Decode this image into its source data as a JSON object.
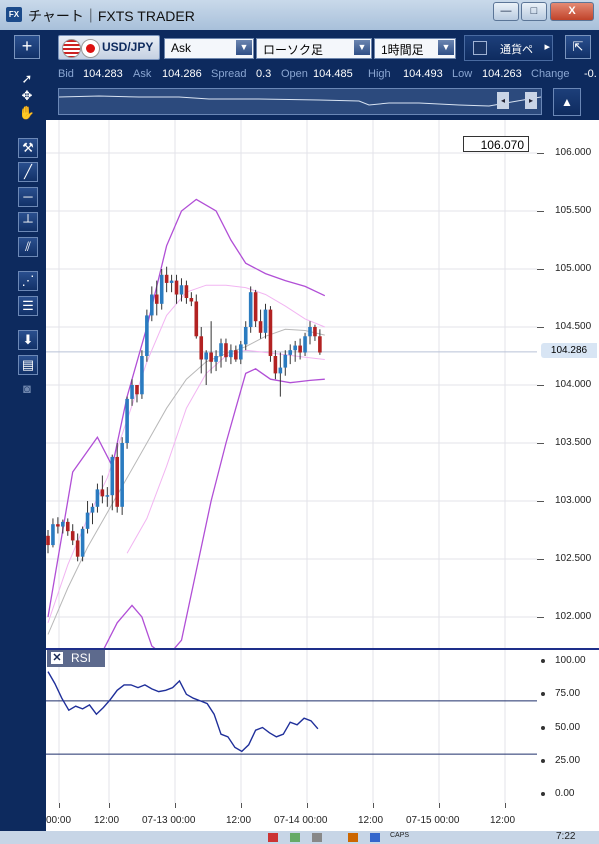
{
  "window": {
    "app_icon": "FX",
    "title": "チャート｜FXTS TRADER",
    "controls": {
      "minimize": "—",
      "maximize": "□",
      "close": "X"
    }
  },
  "toolbar": {
    "add_label": "+",
    "pair": "USD/JPY",
    "price_type": "Ask",
    "chart_type": "ローソク足",
    "timeframe": "1時間足",
    "currency_basis": "通貨ペ",
    "arrow": "▸",
    "detach": "⇱"
  },
  "quote": {
    "bid_label": "Bid",
    "bid": "104.283",
    "ask_label": "Ask",
    "ask": "104.286",
    "spread_label": "Spread",
    "spread": "0.3",
    "open_label": "Open",
    "open": "104.485",
    "high_label": "High",
    "high": "104.493",
    "low_label": "Low",
    "low": "104.263",
    "change_label": "Change",
    "change": "-0."
  },
  "overview": {
    "prev": "◂",
    "next": "▸"
  },
  "price_axis": {
    "ticks": [
      "106.000",
      "105.500",
      "105.000",
      "104.500",
      "104.000",
      "103.500",
      "103.000",
      "102.500",
      "102.000"
    ],
    "top_marker": "106.070",
    "current_marker": "104.286"
  },
  "rsi": {
    "label": "RSI",
    "close": "✕",
    "ticks": [
      "100.00",
      "75.00",
      "50.00",
      "25.00",
      "0.00"
    ],
    "levels": [
      70,
      30
    ]
  },
  "time_axis": {
    "ticks": [
      "00:00",
      "12:00",
      "07-13 00:00",
      "12:00",
      "07-14 00:00",
      "12:00",
      "07-15 00:00",
      "12:00"
    ]
  },
  "taskbar": {
    "caps": "CAPS",
    "clock": "7:22"
  },
  "colors": {
    "frame": "#0d2a5e",
    "bull": "#2a7bc0",
    "bear": "#b22222",
    "bollinger_outer": "#b14fd6",
    "bollinger_inner": "#f2b5f2",
    "moving_average": "#b8b8b8",
    "rsi_line": "#1f2f9a"
  },
  "chart_data": {
    "type": "candlestick",
    "symbol": "USD/JPY",
    "timeframe": "1時間足",
    "y_range": [
      101.75,
      106.1
    ],
    "x_range_hours": [
      0,
      76
    ],
    "candles": [
      [
        0,
        102.7,
        102.75,
        102.55,
        102.62
      ],
      [
        1,
        102.62,
        102.85,
        102.6,
        102.8
      ],
      [
        2,
        102.8,
        102.86,
        102.72,
        102.78
      ],
      [
        3,
        102.78,
        102.84,
        102.72,
        102.82
      ],
      [
        4,
        102.82,
        102.85,
        102.7,
        102.74
      ],
      [
        5,
        102.74,
        102.8,
        102.62,
        102.66
      ],
      [
        6,
        102.66,
        102.72,
        102.48,
        102.52
      ],
      [
        7,
        102.52,
        102.78,
        102.48,
        102.76
      ],
      [
        8,
        102.76,
        103.0,
        102.72,
        102.9
      ],
      [
        9,
        102.9,
        102.98,
        102.8,
        102.95
      ],
      [
        10,
        102.95,
        103.15,
        102.9,
        103.1
      ],
      [
        11,
        103.1,
        103.22,
        102.98,
        103.04
      ],
      [
        12,
        103.04,
        103.12,
        102.95,
        103.05
      ],
      [
        13,
        103.05,
        103.4,
        102.92,
        103.38
      ],
      [
        14,
        103.38,
        103.5,
        102.9,
        102.95
      ],
      [
        15,
        102.95,
        103.55,
        102.88,
        103.5
      ],
      [
        16,
        103.5,
        103.9,
        103.45,
        103.88
      ],
      [
        17,
        103.88,
        104.05,
        103.82,
        104.0
      ],
      [
        18,
        104.0,
        104.0,
        103.85,
        103.92
      ],
      [
        19,
        103.92,
        104.3,
        103.88,
        104.25
      ],
      [
        20,
        104.25,
        104.65,
        104.2,
        104.6
      ],
      [
        21,
        104.6,
        104.85,
        104.55,
        104.78
      ],
      [
        22,
        104.78,
        104.9,
        104.6,
        104.7
      ],
      [
        23,
        104.7,
        105.0,
        104.65,
        104.95
      ],
      [
        24,
        104.95,
        105.02,
        104.8,
        104.88
      ],
      [
        25,
        104.88,
        104.95,
        104.8,
        104.9
      ],
      [
        26,
        104.9,
        104.95,
        104.7,
        104.78
      ],
      [
        27,
        104.78,
        104.92,
        104.72,
        104.86
      ],
      [
        28,
        104.86,
        104.9,
        104.7,
        104.75
      ],
      [
        29,
        104.75,
        104.8,
        104.68,
        104.72
      ],
      [
        30,
        104.72,
        104.78,
        104.4,
        104.42
      ],
      [
        31,
        104.42,
        104.5,
        104.1,
        104.22
      ],
      [
        32,
        104.22,
        104.3,
        104.0,
        104.28
      ],
      [
        33,
        104.28,
        104.55,
        104.1,
        104.2
      ],
      [
        34,
        104.2,
        104.3,
        104.12,
        104.25
      ],
      [
        35,
        104.25,
        104.4,
        104.15,
        104.36
      ],
      [
        36,
        104.36,
        104.4,
        104.2,
        104.24
      ],
      [
        37,
        104.24,
        104.35,
        104.18,
        104.3
      ],
      [
        38,
        104.3,
        104.34,
        104.2,
        104.22
      ],
      [
        39,
        104.22,
        104.38,
        104.18,
        104.35
      ],
      [
        40,
        104.35,
        104.55,
        104.3,
        104.5
      ],
      [
        41,
        104.5,
        104.85,
        104.45,
        104.8
      ],
      [
        42,
        104.8,
        104.82,
        104.5,
        104.55
      ],
      [
        43,
        104.55,
        104.65,
        104.4,
        104.45
      ],
      [
        44,
        104.45,
        104.7,
        104.4,
        104.65
      ],
      [
        45,
        104.65,
        104.68,
        104.2,
        104.25
      ],
      [
        46,
        104.25,
        104.3,
        104.05,
        104.1
      ],
      [
        47,
        104.1,
        104.28,
        103.9,
        104.15
      ],
      [
        48,
        104.15,
        104.3,
        104.08,
        104.26
      ],
      [
        49,
        104.26,
        104.35,
        104.18,
        104.3
      ],
      [
        50,
        104.3,
        104.38,
        104.2,
        104.34
      ],
      [
        51,
        104.34,
        104.4,
        104.22,
        104.28
      ],
      [
        52,
        104.28,
        104.45,
        104.25,
        104.42
      ],
      [
        53,
        104.42,
        104.55,
        104.35,
        104.5
      ],
      [
        54,
        104.5,
        104.52,
        104.38,
        104.42
      ],
      [
        55,
        104.42,
        104.48,
        104.26,
        104.28
      ]
    ],
    "bollinger_upper": [
      [
        0,
        102.0
      ],
      [
        5,
        103.25
      ],
      [
        10,
        103.55
      ],
      [
        13,
        103.3
      ],
      [
        16,
        103.9
      ],
      [
        20,
        104.5
      ],
      [
        24,
        105.2
      ],
      [
        27,
        105.5
      ],
      [
        30,
        105.6
      ],
      [
        34,
        105.5
      ],
      [
        37,
        105.25
      ],
      [
        40,
        105.05
      ],
      [
        44,
        104.96
      ],
      [
        48,
        104.9
      ],
      [
        52,
        104.85
      ],
      [
        56,
        104.77
      ]
    ],
    "bollinger_lower": [
      [
        11,
        101.7
      ],
      [
        14,
        101.95
      ],
      [
        17,
        102.1
      ],
      [
        19,
        102.0
      ],
      [
        21,
        101.75
      ],
      [
        24,
        101.65
      ],
      [
        27,
        101.8
      ],
      [
        30,
        102.4
      ],
      [
        33,
        103.0
      ],
      [
        36,
        103.5
      ],
      [
        38,
        103.8
      ],
      [
        40,
        104.1
      ],
      [
        42,
        104.14
      ],
      [
        45,
        104.05
      ],
      [
        49,
        104.02
      ],
      [
        53,
        104.04
      ],
      [
        56,
        104.05
      ]
    ],
    "bollinger_inner_upper": [
      [
        0,
        101.95
      ],
      [
        4,
        102.45
      ],
      [
        8,
        102.85
      ],
      [
        12,
        103.2
      ],
      [
        16,
        103.7
      ],
      [
        20,
        104.2
      ],
      [
        24,
        104.6
      ],
      [
        28,
        104.8
      ],
      [
        32,
        104.86
      ],
      [
        36,
        104.86
      ],
      [
        40,
        104.84
      ],
      [
        44,
        104.78
      ],
      [
        48,
        104.68
      ],
      [
        52,
        104.57
      ],
      [
        56,
        104.5
      ]
    ],
    "bollinger_inner_lower": [
      [
        16,
        102.55
      ],
      [
        20,
        102.85
      ],
      [
        24,
        103.3
      ],
      [
        28,
        103.8
      ],
      [
        32,
        104.1
      ],
      [
        36,
        104.25
      ],
      [
        40,
        104.3
      ],
      [
        44,
        104.28
      ],
      [
        48,
        104.26
      ],
      [
        52,
        104.24
      ],
      [
        56,
        104.22
      ]
    ],
    "moving_average": [
      [
        0,
        101.85
      ],
      [
        4,
        102.25
      ],
      [
        8,
        102.6
      ],
      [
        12,
        102.9
      ],
      [
        16,
        103.2
      ],
      [
        20,
        103.5
      ],
      [
        24,
        103.8
      ],
      [
        28,
        104.05
      ],
      [
        32,
        104.2
      ],
      [
        36,
        104.27
      ],
      [
        40,
        104.33
      ],
      [
        44,
        104.42
      ],
      [
        48,
        104.48
      ],
      [
        52,
        104.47
      ],
      [
        56,
        104.43
      ]
    ],
    "rsi": [
      [
        0,
        92
      ],
      [
        2,
        83
      ],
      [
        4,
        72
      ],
      [
        6,
        63
      ],
      [
        8,
        66
      ],
      [
        10,
        64
      ],
      [
        12,
        67
      ],
      [
        14,
        60
      ],
      [
        16,
        65
      ],
      [
        18,
        71
      ],
      [
        20,
        78
      ],
      [
        22,
        82
      ],
      [
        24,
        82
      ],
      [
        26,
        80
      ],
      [
        28,
        82
      ],
      [
        30,
        79
      ],
      [
        32,
        77
      ],
      [
        34,
        78
      ],
      [
        36,
        80
      ],
      [
        38,
        85
      ],
      [
        40,
        75
      ],
      [
        42,
        72
      ],
      [
        44,
        70
      ],
      [
        46,
        68
      ],
      [
        48,
        60
      ],
      [
        50,
        45
      ],
      [
        52,
        43
      ],
      [
        54,
        35
      ],
      [
        56,
        32
      ],
      [
        58,
        37
      ],
      [
        60,
        48
      ],
      [
        62,
        50
      ],
      [
        64,
        46
      ],
      [
        66,
        43
      ],
      [
        68,
        45
      ],
      [
        70,
        54
      ],
      [
        72,
        52
      ],
      [
        74,
        57
      ],
      [
        76,
        55
      ],
      [
        78,
        49
      ]
    ]
  }
}
